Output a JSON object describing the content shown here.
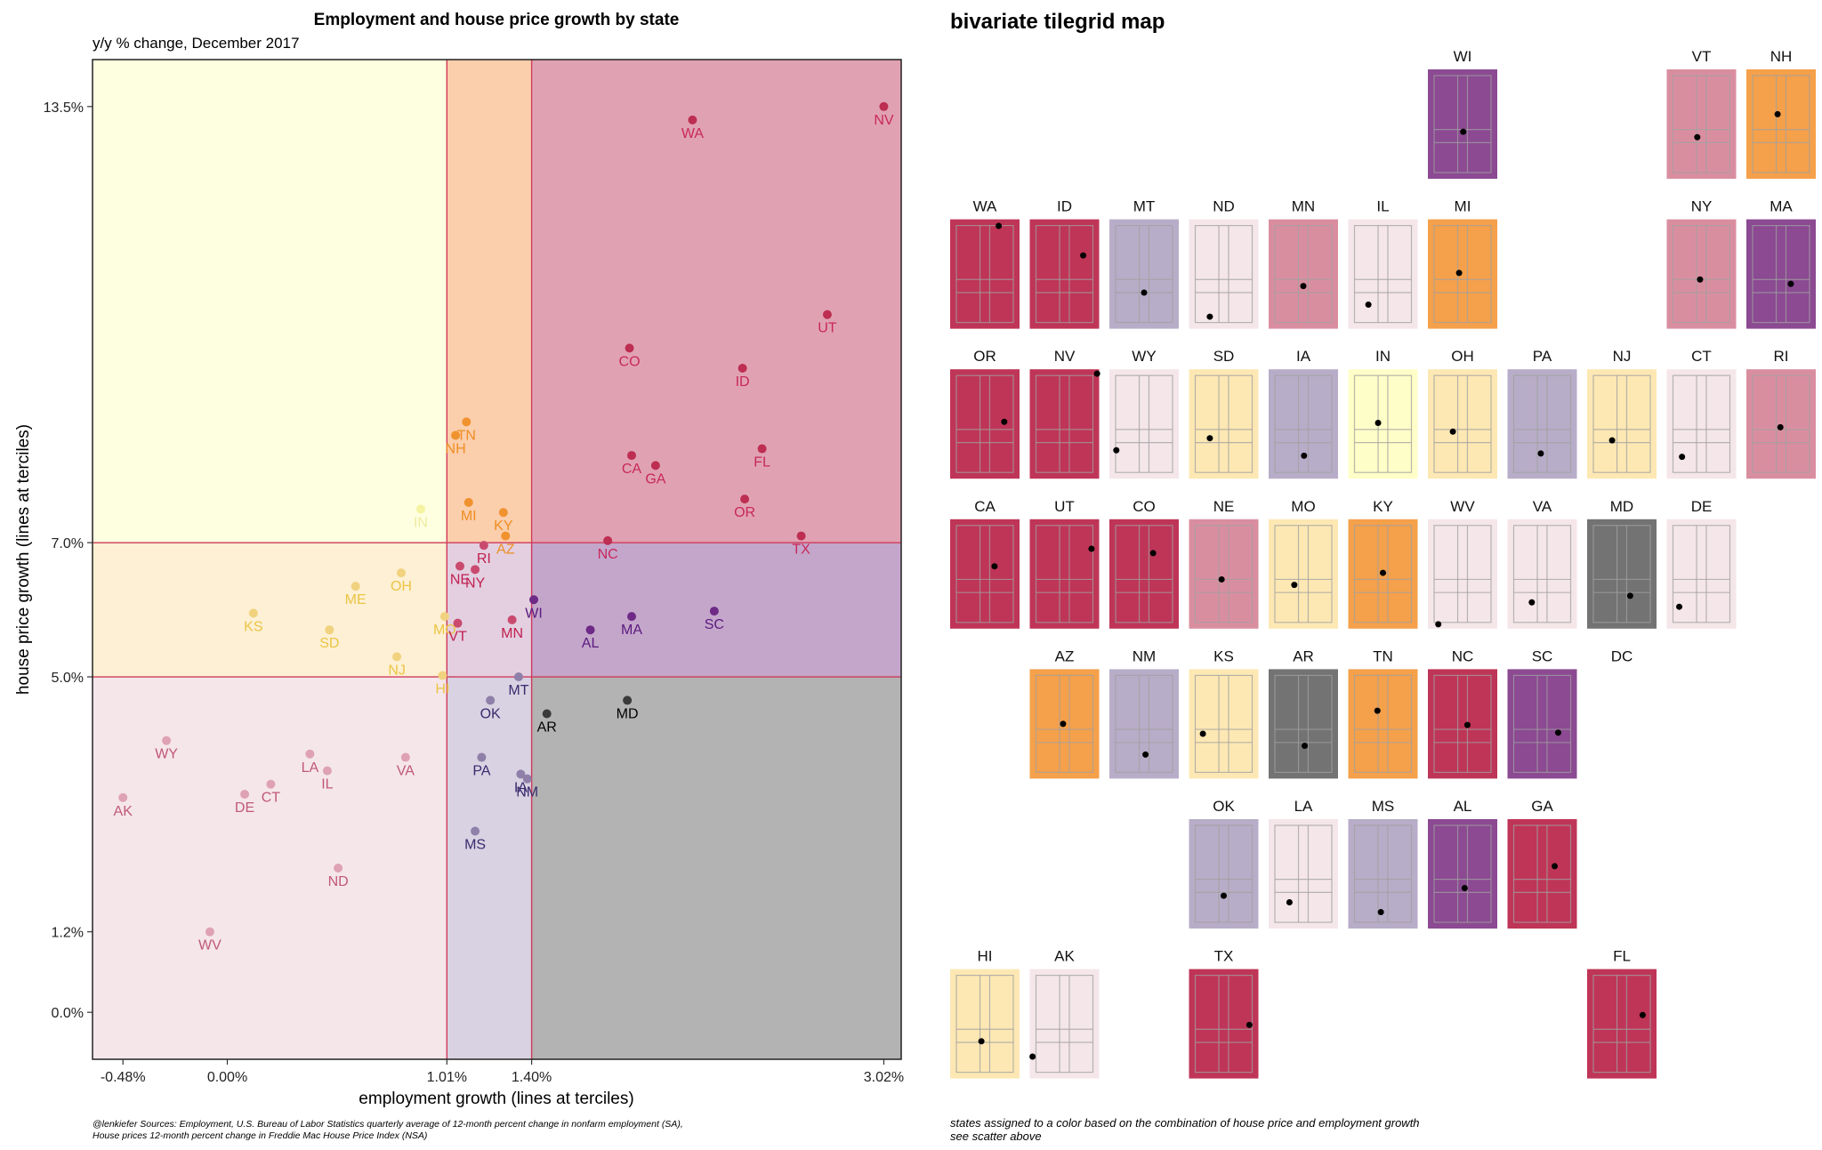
{
  "colors": {
    "LL": "#f5e6ea",
    "LM": "#fdf0d4",
    "LH": "#fefee0",
    "ML": "#d8d2e2",
    "MM": "#e3cfe0",
    "MH": "#fbceac",
    "HL": "#b3b3b3",
    "HM": "#c4a6cb",
    "HH": "#e0a2b3",
    "tile_LL": "#f5e6ea",
    "tile_LM": "#fde8b4",
    "tile_LH": "#fefec8",
    "tile_ML": "#b8adc8",
    "tile_MM": "#d98ea0",
    "tile_MH": "#f5a04a",
    "tile_HL": "#737373",
    "tile_HM": "#8b4a92",
    "tile_HH": "#bf3557",
    "pt_LL": "#dea2b4",
    "pt_LM": "#f1d27e",
    "pt_LH": "#f4f4a0",
    "pt_ML": "#8e80a8",
    "pt_MM": "#c94a6e",
    "pt_MH": "#f0922e",
    "pt_HL": "#3a3a3a",
    "pt_HM": "#6e2a86",
    "pt_HH": "#bd2e52",
    "lb_LL": "#c05878",
    "lb_LM": "#ecc444",
    "lb_LH": "#ececa0",
    "lb_ML": "#3a2a6e",
    "lb_MM": "#c02050",
    "lb_MH": "#ee8e22",
    "lb_HL": "#000000",
    "lb_HM": "#5a1a7e",
    "lb_HH": "#c8285a",
    "line": "#cf3a5a"
  },
  "scatter": {
    "title": "Employment and house price growth by state",
    "subtitle": "y/y % change, December 2017",
    "xlabel": "employment growth (lines at terciles)",
    "ylabel": "house price growth (lines at terciles)",
    "caption_line1": "@lenkiefer Sources: Employment, U.S. Bureau of Labor Statistics quarterly average of 12-month percent change in nonfarm employment (SA),",
    "caption_line2": "House prices 12-month percent change in Freddie Mac House Price Index (NSA)"
  },
  "map": {
    "title": "bivariate tilegrid map",
    "caption_line1": "states assigned to a color based on the combination of house price and employment growth",
    "caption_line2": "see scatter above"
  },
  "chart_data": [
    {
      "type": "scatter",
      "title": "Employment and house price growth by state",
      "subtitle": "y/y % change, December 2017",
      "xlabel": "employment growth (lines at terciles)",
      "ylabel": "house price growth (lines at terciles)",
      "xlim": [
        -0.62,
        3.1
      ],
      "ylim": [
        -0.7,
        14.2
      ],
      "x_ticks": [
        -0.48,
        0.0,
        1.01,
        1.4,
        3.02
      ],
      "x_tick_labels": [
        "-0.48%",
        "0.00%",
        "1.01%",
        "1.40%",
        "3.02%"
      ],
      "y_ticks": [
        0.0,
        1.2,
        5.0,
        7.0,
        13.5
      ],
      "y_tick_labels": [
        "0.0%",
        "1.2%",
        "5.0%",
        "7.0%",
        "13.5%"
      ],
      "x_terciles": [
        1.01,
        1.4
      ],
      "y_terciles": [
        5.0,
        7.0
      ],
      "grid": false,
      "points": [
        {
          "state": "NV",
          "x": 3.02,
          "y": 13.5,
          "cls": "HH"
        },
        {
          "state": "WA",
          "x": 2.14,
          "y": 13.3,
          "cls": "HH"
        },
        {
          "state": "UT",
          "x": 2.76,
          "y": 10.4,
          "cls": "HH"
        },
        {
          "state": "CO",
          "x": 1.85,
          "y": 9.9,
          "cls": "HH"
        },
        {
          "state": "ID",
          "x": 2.37,
          "y": 9.6,
          "cls": "HH"
        },
        {
          "state": "TN",
          "x": 1.1,
          "y": 8.8,
          "cls": "MH"
        },
        {
          "state": "NH",
          "x": 1.05,
          "y": 8.6,
          "cls": "MH"
        },
        {
          "state": "FL",
          "x": 2.46,
          "y": 8.4,
          "cls": "HH"
        },
        {
          "state": "CA",
          "x": 1.86,
          "y": 8.3,
          "cls": "HH"
        },
        {
          "state": "GA",
          "x": 1.97,
          "y": 8.15,
          "cls": "HH"
        },
        {
          "state": "OR",
          "x": 2.38,
          "y": 7.65,
          "cls": "HH"
        },
        {
          "state": "MI",
          "x": 1.11,
          "y": 7.6,
          "cls": "MH"
        },
        {
          "state": "KY",
          "x": 1.27,
          "y": 7.45,
          "cls": "MH"
        },
        {
          "state": "IN",
          "x": 0.89,
          "y": 7.5,
          "cls": "LH"
        },
        {
          "state": "AZ",
          "x": 1.28,
          "y": 7.1,
          "cls": "MH"
        },
        {
          "state": "TX",
          "x": 2.64,
          "y": 7.1,
          "cls": "HH"
        },
        {
          "state": "NC",
          "x": 1.75,
          "y": 7.03,
          "cls": "HH"
        },
        {
          "state": "RI",
          "x": 1.18,
          "y": 6.96,
          "cls": "MM"
        },
        {
          "state": "NE",
          "x": 1.07,
          "y": 6.65,
          "cls": "MM"
        },
        {
          "state": "NY",
          "x": 1.14,
          "y": 6.6,
          "cls": "MM"
        },
        {
          "state": "OH",
          "x": 0.8,
          "y": 6.55,
          "cls": "LM"
        },
        {
          "state": "ME",
          "x": 0.59,
          "y": 6.35,
          "cls": "LM"
        },
        {
          "state": "WI",
          "x": 1.41,
          "y": 6.15,
          "cls": "HM"
        },
        {
          "state": "KS",
          "x": 0.12,
          "y": 5.95,
          "cls": "LM"
        },
        {
          "state": "MA",
          "x": 1.86,
          "y": 5.9,
          "cls": "HM"
        },
        {
          "state": "SC",
          "x": 2.24,
          "y": 5.98,
          "cls": "HM"
        },
        {
          "state": "MO",
          "x": 1.0,
          "y": 5.9,
          "cls": "LM"
        },
        {
          "state": "MN",
          "x": 1.31,
          "y": 5.85,
          "cls": "MM"
        },
        {
          "state": "VT",
          "x": 1.06,
          "y": 5.8,
          "cls": "MM"
        },
        {
          "state": "SD",
          "x": 0.47,
          "y": 5.7,
          "cls": "LM"
        },
        {
          "state": "AL",
          "x": 1.67,
          "y": 5.7,
          "cls": "HM"
        },
        {
          "state": "NJ",
          "x": 0.78,
          "y": 5.3,
          "cls": "LM"
        },
        {
          "state": "HI",
          "x": 0.99,
          "y": 5.02,
          "cls": "LM"
        },
        {
          "state": "MT",
          "x": 1.34,
          "y": 5.0,
          "cls": "ML"
        },
        {
          "state": "MD",
          "x": 1.84,
          "y": 4.65,
          "cls": "HL"
        },
        {
          "state": "OK",
          "x": 1.21,
          "y": 4.65,
          "cls": "ML"
        },
        {
          "state": "AR",
          "x": 1.47,
          "y": 4.45,
          "cls": "HL"
        },
        {
          "state": "WY",
          "x": -0.28,
          "y": 4.05,
          "cls": "LL"
        },
        {
          "state": "LA",
          "x": 0.38,
          "y": 3.85,
          "cls": "LL"
        },
        {
          "state": "PA",
          "x": 1.17,
          "y": 3.8,
          "cls": "ML"
        },
        {
          "state": "VA",
          "x": 0.82,
          "y": 3.8,
          "cls": "LL"
        },
        {
          "state": "IL",
          "x": 0.46,
          "y": 3.6,
          "cls": "LL"
        },
        {
          "state": "IA",
          "x": 1.35,
          "y": 3.55,
          "cls": "ML"
        },
        {
          "state": "NM",
          "x": 1.38,
          "y": 3.48,
          "cls": "ML"
        },
        {
          "state": "CT",
          "x": 0.2,
          "y": 3.4,
          "cls": "LL"
        },
        {
          "state": "DE",
          "x": 0.08,
          "y": 3.25,
          "cls": "LL"
        },
        {
          "state": "AK",
          "x": -0.48,
          "y": 3.2,
          "cls": "LL"
        },
        {
          "state": "MS",
          "x": 1.14,
          "y": 2.7,
          "cls": "ML"
        },
        {
          "state": "ND",
          "x": 0.51,
          "y": 2.15,
          "cls": "LL"
        },
        {
          "state": "WV",
          "x": -0.08,
          "y": 1.2,
          "cls": "LL"
        }
      ]
    },
    {
      "type": "tilegrid_map",
      "title": "bivariate tilegrid map",
      "tiles": [
        {
          "state": "WI",
          "col": 6,
          "row": 0,
          "cls": "HM",
          "dx": 0.51,
          "dy": 0.57
        },
        {
          "state": "VT",
          "col": 9,
          "row": 0,
          "cls": "MM",
          "dx": 0.44,
          "dy": 0.62
        },
        {
          "state": "NH",
          "col": 10,
          "row": 0,
          "cls": "MH",
          "dx": 0.45,
          "dy": 0.41
        },
        {
          "state": "ME",
          "col": 11,
          "row": 0,
          "cls": "LM",
          "dx": 0.33,
          "dy": 0.58
        },
        {
          "state": "WA",
          "col": 0,
          "row": 1,
          "cls": "HH",
          "dx": 0.7,
          "dy": 0.06
        },
        {
          "state": "ID",
          "col": 1,
          "row": 1,
          "cls": "HH",
          "dx": 0.77,
          "dy": 0.33
        },
        {
          "state": "MT",
          "col": 2,
          "row": 1,
          "cls": "ML",
          "dx": 0.5,
          "dy": 0.67
        },
        {
          "state": "ND",
          "col": 3,
          "row": 1,
          "cls": "LL",
          "dx": 0.3,
          "dy": 0.89
        },
        {
          "state": "MN",
          "col": 4,
          "row": 1,
          "cls": "MM",
          "dx": 0.5,
          "dy": 0.61
        },
        {
          "state": "IL",
          "col": 5,
          "row": 1,
          "cls": "LL",
          "dx": 0.29,
          "dy": 0.78
        },
        {
          "state": "MI",
          "col": 6,
          "row": 1,
          "cls": "MH",
          "dx": 0.45,
          "dy": 0.49
        },
        {
          "state": "NY",
          "col": 9,
          "row": 1,
          "cls": "MM",
          "dx": 0.48,
          "dy": 0.55
        },
        {
          "state": "MA",
          "col": 10,
          "row": 1,
          "cls": "HM",
          "dx": 0.64,
          "dy": 0.59
        },
        {
          "state": "OR",
          "col": 0,
          "row": 2,
          "cls": "HH",
          "dx": 0.78,
          "dy": 0.48
        },
        {
          "state": "NV",
          "col": 1,
          "row": 2,
          "cls": "HH",
          "dx": 0.97,
          "dy": 0.04
        },
        {
          "state": "WY",
          "col": 2,
          "row": 2,
          "cls": "LL",
          "dx": 0.1,
          "dy": 0.74
        },
        {
          "state": "SD",
          "col": 3,
          "row": 2,
          "cls": "LM",
          "dx": 0.3,
          "dy": 0.63
        },
        {
          "state": "IA",
          "col": 4,
          "row": 2,
          "cls": "ML",
          "dx": 0.51,
          "dy": 0.79
        },
        {
          "state": "IN",
          "col": 5,
          "row": 2,
          "cls": "LH",
          "dx": 0.43,
          "dy": 0.49
        },
        {
          "state": "OH",
          "col": 6,
          "row": 2,
          "cls": "LM",
          "dx": 0.36,
          "dy": 0.57
        },
        {
          "state": "PA",
          "col": 7,
          "row": 2,
          "cls": "ML",
          "dx": 0.48,
          "dy": 0.77
        },
        {
          "state": "NJ",
          "col": 8,
          "row": 2,
          "cls": "LM",
          "dx": 0.36,
          "dy": 0.65
        },
        {
          "state": "CT",
          "col": 9,
          "row": 2,
          "cls": "LL",
          "dx": 0.22,
          "dy": 0.8
        },
        {
          "state": "RI",
          "col": 10,
          "row": 2,
          "cls": "MM",
          "dx": 0.49,
          "dy": 0.53
        },
        {
          "state": "CA",
          "col": 0,
          "row": 3,
          "cls": "HH",
          "dx": 0.64,
          "dy": 0.43
        },
        {
          "state": "UT",
          "col": 1,
          "row": 3,
          "cls": "HH",
          "dx": 0.89,
          "dy": 0.27
        },
        {
          "state": "CO",
          "col": 2,
          "row": 3,
          "cls": "HH",
          "dx": 0.63,
          "dy": 0.31
        },
        {
          "state": "NE",
          "col": 3,
          "row": 3,
          "cls": "MM",
          "dx": 0.47,
          "dy": 0.55
        },
        {
          "state": "MO",
          "col": 4,
          "row": 3,
          "cls": "LM",
          "dx": 0.37,
          "dy": 0.6
        },
        {
          "state": "KY",
          "col": 5,
          "row": 3,
          "cls": "MH",
          "dx": 0.5,
          "dy": 0.49
        },
        {
          "state": "WV",
          "col": 6,
          "row": 3,
          "cls": "LL",
          "dx": 0.15,
          "dy": 0.96
        },
        {
          "state": "VA",
          "col": 7,
          "row": 3,
          "cls": "LL",
          "dx": 0.35,
          "dy": 0.76
        },
        {
          "state": "MD",
          "col": 8,
          "row": 3,
          "cls": "HL",
          "dx": 0.62,
          "dy": 0.7
        },
        {
          "state": "DE",
          "col": 9,
          "row": 3,
          "cls": "LL",
          "dx": 0.18,
          "dy": 0.8
        },
        {
          "state": "AZ",
          "col": 1,
          "row": 4,
          "cls": "MH",
          "dx": 0.48,
          "dy": 0.5
        },
        {
          "state": "NM",
          "col": 2,
          "row": 4,
          "cls": "ML",
          "dx": 0.52,
          "dy": 0.78
        },
        {
          "state": "KS",
          "col": 3,
          "row": 4,
          "cls": "LM",
          "dx": 0.2,
          "dy": 0.59
        },
        {
          "state": "AR",
          "col": 4,
          "row": 4,
          "cls": "HL",
          "dx": 0.52,
          "dy": 0.7
        },
        {
          "state": "TN",
          "col": 5,
          "row": 4,
          "cls": "MH",
          "dx": 0.42,
          "dy": 0.38
        },
        {
          "state": "NC",
          "col": 6,
          "row": 4,
          "cls": "HH",
          "dx": 0.57,
          "dy": 0.51
        },
        {
          "state": "SC",
          "col": 7,
          "row": 4,
          "cls": "HM",
          "dx": 0.73,
          "dy": 0.58
        },
        {
          "state": "DC",
          "col": 8,
          "row": 4,
          "cls": "none",
          "dx": 0.5,
          "dy": 0.5
        },
        {
          "state": "OK",
          "col": 3,
          "row": 5,
          "cls": "ML",
          "dx": 0.5,
          "dy": 0.7
        },
        {
          "state": "LA",
          "col": 4,
          "row": 5,
          "cls": "LL",
          "dx": 0.3,
          "dy": 0.76
        },
        {
          "state": "MS",
          "col": 5,
          "row": 5,
          "cls": "ML",
          "dx": 0.47,
          "dy": 0.85
        },
        {
          "state": "AL",
          "col": 6,
          "row": 5,
          "cls": "HM",
          "dx": 0.53,
          "dy": 0.63
        },
        {
          "state": "GA",
          "col": 7,
          "row": 5,
          "cls": "HH",
          "dx": 0.68,
          "dy": 0.43
        },
        {
          "state": "HI",
          "col": 0,
          "row": 6,
          "cls": "LM",
          "dx": 0.45,
          "dy": 0.66
        },
        {
          "state": "AK",
          "col": 1,
          "row": 6,
          "cls": "LL",
          "dx": 0.04,
          "dy": 0.8
        },
        {
          "state": "TX",
          "col": 3,
          "row": 6,
          "cls": "HH",
          "dx": 0.87,
          "dy": 0.51
        },
        {
          "state": "FL",
          "col": 8,
          "row": 6,
          "cls": "HH",
          "dx": 0.8,
          "dy": 0.42
        }
      ]
    }
  ]
}
